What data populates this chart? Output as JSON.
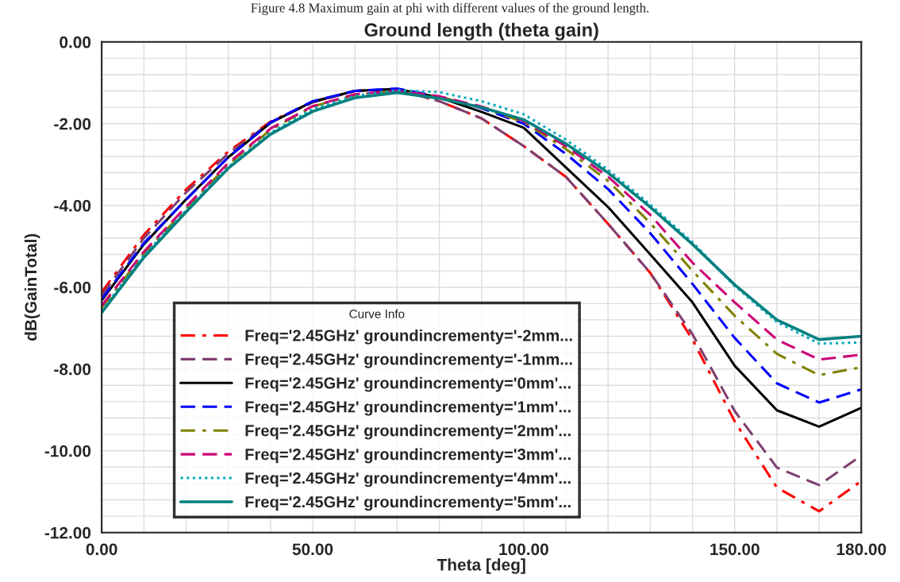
{
  "chart_data": {
    "type": "line",
    "title": "Ground length (theta gain)",
    "xlabel": "Theta [deg]",
    "ylabel": "dB(GainTotal)",
    "legend_title": "Curve Info",
    "annotations": [
      "Figure 4.8 Maximum gain at phi with different values of the ground length."
    ],
    "x": [
      0,
      10,
      20,
      30,
      40,
      50,
      60,
      70,
      80,
      90,
      100,
      110,
      120,
      130,
      140,
      150,
      160,
      170,
      180
    ],
    "series": [
      {
        "name": "Freq='2.45GHz' groundincrementy='-2mm...",
        "color": "#ff0000",
        "line_style": "dashdot",
        "values": [
          -6.12,
          -4.72,
          -3.61,
          -2.68,
          -1.95,
          -1.47,
          -1.2,
          -1.16,
          -1.45,
          -1.87,
          -2.55,
          -3.3,
          -4.45,
          -5.65,
          -7.28,
          -9.28,
          -10.9,
          -11.48,
          -10.74
        ]
      },
      {
        "name": "Freq='2.45GHz' groundincrementy='-1mm...",
        "color": "#7f3f6f",
        "line_style": "dashed",
        "values": [
          -6.2,
          -4.8,
          -3.68,
          -2.73,
          -1.97,
          -1.48,
          -1.2,
          -1.16,
          -1.45,
          -1.87,
          -2.55,
          -3.3,
          -4.45,
          -5.65,
          -7.15,
          -9.03,
          -10.41,
          -10.84,
          -10.12
        ]
      },
      {
        "name": "Freq='2.45GHz' groundincrementy='0mm'...",
        "color": "#000000",
        "line_style": "solid",
        "values": [
          -6.32,
          -4.95,
          -3.85,
          -2.82,
          -1.98,
          -1.46,
          -1.2,
          -1.15,
          -1.36,
          -1.71,
          -2.1,
          -3.07,
          -4.04,
          -5.2,
          -6.37,
          -7.92,
          -9.01,
          -9.41,
          -8.95
        ]
      },
      {
        "name": "Freq='2.45GHz' groundincrementy='1mm'...",
        "color": "#0000ff",
        "line_style": "dashed",
        "values": [
          -6.29,
          -4.92,
          -3.86,
          -2.82,
          -1.97,
          -1.45,
          -1.2,
          -1.14,
          -1.34,
          -1.62,
          -2.0,
          -2.74,
          -3.6,
          -4.68,
          -5.92,
          -7.24,
          -8.35,
          -8.82,
          -8.5
        ]
      },
      {
        "name": "Freq='2.45GHz' groundincrementy='2mm'...",
        "color": "#808000",
        "line_style": "dashdot",
        "values": [
          -6.5,
          -5.18,
          -4.08,
          -3.0,
          -2.15,
          -1.58,
          -1.3,
          -1.2,
          -1.34,
          -1.6,
          -1.96,
          -2.62,
          -3.4,
          -4.43,
          -5.6,
          -6.7,
          -7.63,
          -8.15,
          -7.96
        ]
      },
      {
        "name": "Freq='2.45GHz' groundincrementy='3mm'...",
        "color": "#cc0077",
        "line_style": "dashed",
        "values": [
          -6.45,
          -5.13,
          -4.03,
          -2.96,
          -2.12,
          -1.57,
          -1.28,
          -1.2,
          -1.33,
          -1.58,
          -1.93,
          -2.55,
          -3.3,
          -4.23,
          -5.4,
          -6.37,
          -7.28,
          -7.77,
          -7.65
        ]
      },
      {
        "name": "Freq='2.45GHz' groundincrementy='4mm'...",
        "color": "#00aabb",
        "line_style": "dotted",
        "values": [
          -6.57,
          -5.22,
          -4.12,
          -3.06,
          -2.22,
          -1.64,
          -1.32,
          -1.18,
          -1.23,
          -1.45,
          -1.77,
          -2.39,
          -3.13,
          -3.98,
          -4.9,
          -5.97,
          -6.85,
          -7.38,
          -7.35
        ]
      },
      {
        "name": "Freq='2.45GHz' groundincrementy='5mm'...",
        "color": "#008080",
        "line_style": "solid",
        "values": [
          -6.62,
          -5.27,
          -4.16,
          -3.09,
          -2.26,
          -1.7,
          -1.37,
          -1.24,
          -1.38,
          -1.6,
          -1.9,
          -2.49,
          -3.2,
          -4.04,
          -4.95,
          -5.94,
          -6.8,
          -7.28,
          -7.2
        ]
      }
    ],
    "xlim": [
      0,
      180
    ],
    "xticks": [
      {
        "value": 0,
        "label": "0.00"
      },
      {
        "value": 10,
        "label": null
      },
      {
        "value": 20,
        "label": null
      },
      {
        "value": 30,
        "label": null
      },
      {
        "value": 40,
        "label": null
      },
      {
        "value": 50,
        "label": "50.00"
      },
      {
        "value": 60,
        "label": null
      },
      {
        "value": 70,
        "label": null
      },
      {
        "value": 80,
        "label": null
      },
      {
        "value": 90,
        "label": null
      },
      {
        "value": 100,
        "label": "100.00"
      },
      {
        "value": 110,
        "label": null
      },
      {
        "value": 120,
        "label": null
      },
      {
        "value": 130,
        "label": null
      },
      {
        "value": 140,
        "label": null
      },
      {
        "value": 150,
        "label": "150.00"
      },
      {
        "value": 160,
        "label": null
      },
      {
        "value": 170,
        "label": null
      },
      {
        "value": 180,
        "label": "180.00"
      }
    ],
    "ylim": [
      -12,
      0
    ],
    "yticks": [
      {
        "value": 0,
        "label": "0.00"
      },
      {
        "value": -0.4,
        "label": null
      },
      {
        "value": -0.8,
        "label": null
      },
      {
        "value": -1.2,
        "label": null
      },
      {
        "value": -1.6,
        "label": null
      },
      {
        "value": -2,
        "label": "-2.00"
      },
      {
        "value": -2.4,
        "label": null
      },
      {
        "value": -2.8,
        "label": null
      },
      {
        "value": -3.2,
        "label": null
      },
      {
        "value": -3.6,
        "label": null
      },
      {
        "value": -4,
        "label": "-4.00"
      },
      {
        "value": -4.4,
        "label": null
      },
      {
        "value": -4.8,
        "label": null
      },
      {
        "value": -5.2,
        "label": null
      },
      {
        "value": -5.6,
        "label": null
      },
      {
        "value": -6,
        "label": "-6.00"
      },
      {
        "value": -6.4,
        "label": null
      },
      {
        "value": -6.8,
        "label": null
      },
      {
        "value": -7.2,
        "label": null
      },
      {
        "value": -7.6,
        "label": null
      },
      {
        "value": -8,
        "label": "-8.00"
      },
      {
        "value": -8.4,
        "label": null
      },
      {
        "value": -8.8,
        "label": null
      },
      {
        "value": -9.2,
        "label": null
      },
      {
        "value": -9.6,
        "label": null
      },
      {
        "value": -10,
        "label": "-10.00"
      },
      {
        "value": -10.4,
        "label": null
      },
      {
        "value": -10.8,
        "label": null
      },
      {
        "value": -11.2,
        "label": null
      },
      {
        "value": -11.6,
        "label": null
      },
      {
        "value": -12,
        "label": "-12.00"
      }
    ],
    "grid": true,
    "legend": "bottom left"
  }
}
